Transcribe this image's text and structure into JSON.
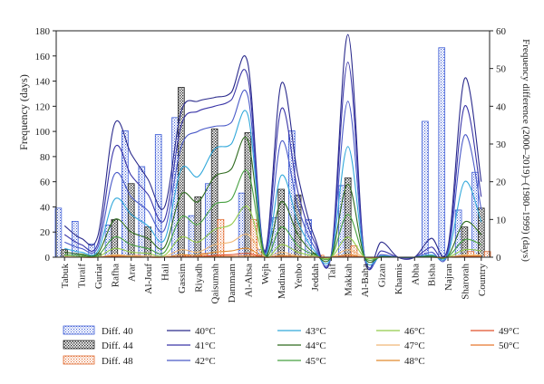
{
  "chart_data": {
    "type": "bar",
    "xlabel": "",
    "ylabel": "Frequency (days)",
    "y2label": "Frequency difference (2000–2019)–(1980–1999) (days)",
    "ylim": [
      0,
      180
    ],
    "y2lim": [
      0,
      60
    ],
    "yticks": [
      0,
      20,
      40,
      60,
      80,
      100,
      120,
      140,
      160,
      180
    ],
    "y2ticks": [
      0,
      10,
      20,
      30,
      40,
      50,
      60
    ],
    "categories": [
      "Tabuk",
      "Turaif",
      "Guriat",
      "Rafha",
      "Arar",
      "Al-Jouf",
      "Hail",
      "Gassim",
      "Riyadh",
      "Qaisumah",
      "Dammam",
      "Al-Ahsa",
      "Wejh",
      "Madinah",
      "Yenbo",
      "Jeddah",
      "Taif",
      "Makkah",
      "Al-Baha",
      "Gizan",
      "Khamis",
      "Abha",
      "Bisha",
      "Najran",
      "Sharorah",
      "Country"
    ],
    "bar_series": [
      {
        "name": "Diff. 40",
        "color": "#3b5bd6",
        "values": [
          13,
          9.5,
          3.5,
          8.5,
          33.5,
          24,
          32.5,
          37,
          11,
          19.5,
          0,
          17,
          2,
          10.5,
          33.5,
          10,
          0,
          19,
          0,
          0,
          0,
          0,
          36,
          55.5,
          12.5,
          22.5
        ]
      },
      {
        "name": "Diff. 44",
        "color": "#222222",
        "values": [
          2,
          0.5,
          1,
          10,
          19.5,
          8,
          0,
          45,
          16,
          34,
          0,
          33,
          1.5,
          18,
          16.5,
          1,
          0,
          21,
          0,
          0,
          0,
          0,
          0,
          0,
          8,
          13
        ]
      },
      {
        "name": "Diff. 48",
        "color": "#e0662a",
        "values": [
          0,
          0,
          0,
          0.5,
          0.5,
          0,
          0,
          0.5,
          1,
          10,
          0,
          10,
          0,
          0.5,
          0,
          0.5,
          0,
          3,
          0,
          0,
          0,
          0,
          0,
          0,
          1.5,
          1.5
        ]
      }
    ],
    "line_series": [
      {
        "name": "40°C",
        "color": "#2a2a8c",
        "values": [
          25,
          15,
          17,
          106,
          82,
          62,
          40,
          116,
          124,
          127,
          131,
          154,
          5,
          138,
          65,
          16,
          2,
          177,
          0,
          12,
          0,
          0,
          15,
          8,
          142,
          60
        ]
      },
      {
        "name": "41°C",
        "color": "#3a36a8",
        "values": [
          18,
          10,
          11,
          87,
          65,
          50,
          30,
          105,
          116,
          120,
          125,
          143,
          4,
          118,
          52,
          12,
          1.5,
          155,
          0,
          5,
          0,
          0,
          8,
          5,
          120,
          48
        ]
      },
      {
        "name": "42°C",
        "color": "#4a5ac8",
        "values": [
          12,
          7,
          8,
          66,
          48,
          37,
          22,
          88,
          100,
          104,
          107,
          128,
          3,
          92,
          40,
          8,
          1,
          124,
          0,
          2,
          0,
          0,
          4,
          3,
          97,
          38
        ]
      },
      {
        "name": "43°C",
        "color": "#33a9db",
        "values": [
          7,
          4,
          5,
          46,
          34,
          25,
          14,
          70,
          64,
          86,
          90,
          113,
          2.5,
          65,
          28,
          5,
          0.7,
          88,
          0,
          1,
          0,
          0,
          2,
          2,
          60,
          28
        ]
      },
      {
        "name": "44°C",
        "color": "#2f6b1f",
        "values": [
          4,
          2.5,
          3,
          30,
          20,
          15,
          8,
          50,
          44,
          64,
          70,
          93,
          2,
          44,
          18,
          3,
          0.5,
          58,
          0,
          0.5,
          0,
          0,
          1,
          1,
          28,
          18
        ]
      },
      {
        "name": "45°C",
        "color": "#46a040",
        "values": [
          2,
          1.5,
          1.5,
          16,
          10,
          7,
          4,
          32,
          26,
          42,
          46,
          68,
          1.5,
          24,
          9,
          2,
          0.3,
          34,
          0,
          0,
          0,
          0,
          0.5,
          0.5,
          14,
          10
        ]
      },
      {
        "name": "46°C",
        "color": "#92c94a",
        "values": [
          1,
          0.5,
          0.5,
          7,
          4,
          3,
          1.5,
          16,
          12,
          22,
          26,
          40,
          1,
          10,
          4,
          1,
          0,
          16,
          0,
          0,
          0,
          0,
          0,
          0,
          6,
          5
        ]
      },
      {
        "name": "47°C",
        "color": "#f0b878",
        "values": [
          0.5,
          0,
          0,
          2,
          1,
          1,
          0.5,
          6,
          4,
          10,
          12,
          18,
          0.5,
          4,
          1,
          0.5,
          0,
          6,
          0,
          0,
          0,
          0,
          0,
          0,
          2,
          2
        ]
      },
      {
        "name": "48°C",
        "color": "#e08a2e",
        "values": [
          0,
          0,
          0,
          1,
          0.5,
          0,
          0,
          2,
          1.5,
          4,
          5,
          7,
          0,
          1.5,
          0.5,
          0,
          0,
          2,
          0,
          0,
          0,
          0,
          0,
          0,
          1,
          1
        ]
      },
      {
        "name": "49°C",
        "color": "#e0502a",
        "values": [
          0,
          0,
          0,
          0.3,
          0,
          0,
          0,
          0.5,
          0.5,
          1.5,
          2,
          3,
          0,
          0.5,
          0,
          0,
          0,
          0.7,
          0,
          0,
          0,
          0,
          0,
          0,
          0.3,
          0.5
        ]
      },
      {
        "name": "50°C",
        "color": "#e8782e",
        "values": [
          0,
          0,
          0,
          0,
          0,
          0,
          0,
          0.2,
          0.2,
          0.5,
          0.8,
          1,
          0,
          0.2,
          0,
          0,
          0,
          0.3,
          0,
          0,
          0,
          0,
          0,
          0,
          0,
          0.2
        ]
      }
    ],
    "legend_position": "bottom"
  }
}
